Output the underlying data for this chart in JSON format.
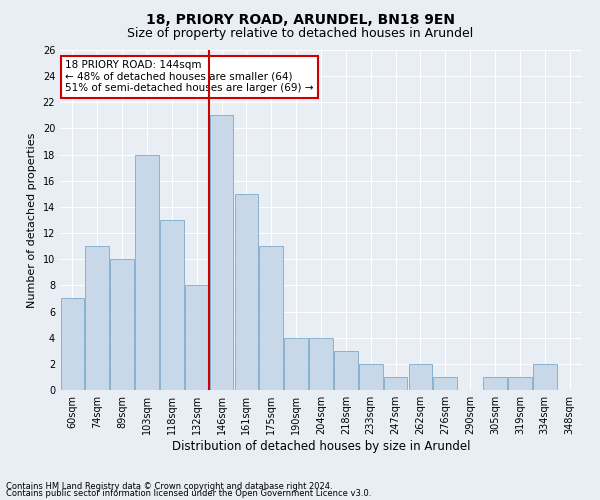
{
  "title1": "18, PRIORY ROAD, ARUNDEL, BN18 9EN",
  "title2": "Size of property relative to detached houses in Arundel",
  "xlabel": "Distribution of detached houses by size in Arundel",
  "ylabel": "Number of detached properties",
  "footer1": "Contains HM Land Registry data © Crown copyright and database right 2024.",
  "footer2": "Contains public sector information licensed under the Open Government Licence v3.0.",
  "categories": [
    "60sqm",
    "74sqm",
    "89sqm",
    "103sqm",
    "118sqm",
    "132sqm",
    "146sqm",
    "161sqm",
    "175sqm",
    "190sqm",
    "204sqm",
    "218sqm",
    "233sqm",
    "247sqm",
    "262sqm",
    "276sqm",
    "290sqm",
    "305sqm",
    "319sqm",
    "334sqm",
    "348sqm"
  ],
  "values": [
    7,
    11,
    10,
    18,
    13,
    8,
    21,
    15,
    11,
    4,
    4,
    3,
    2,
    1,
    2,
    1,
    0,
    1,
    1,
    2,
    0
  ],
  "bar_color": "#c8d8e8",
  "bar_edge_color": "#7aabcc",
  "highlight_index": 6,
  "red_line_color": "#cc0000",
  "annotation_text": "18 PRIORY ROAD: 144sqm\n← 48% of detached houses are smaller (64)\n51% of semi-detached houses are larger (69) →",
  "annotation_box_color": "#ffffff",
  "annotation_box_edge": "#cc0000",
  "ylim": [
    0,
    26
  ],
  "yticks": [
    0,
    2,
    4,
    6,
    8,
    10,
    12,
    14,
    16,
    18,
    20,
    22,
    24,
    26
  ],
  "bg_color": "#e8eef4",
  "grid_color": "#ffffff",
  "title1_fontsize": 10,
  "title2_fontsize": 9,
  "xlabel_fontsize": 8.5,
  "ylabel_fontsize": 8,
  "tick_fontsize": 7,
  "annotation_fontsize": 7.5,
  "footer_fontsize": 6
}
